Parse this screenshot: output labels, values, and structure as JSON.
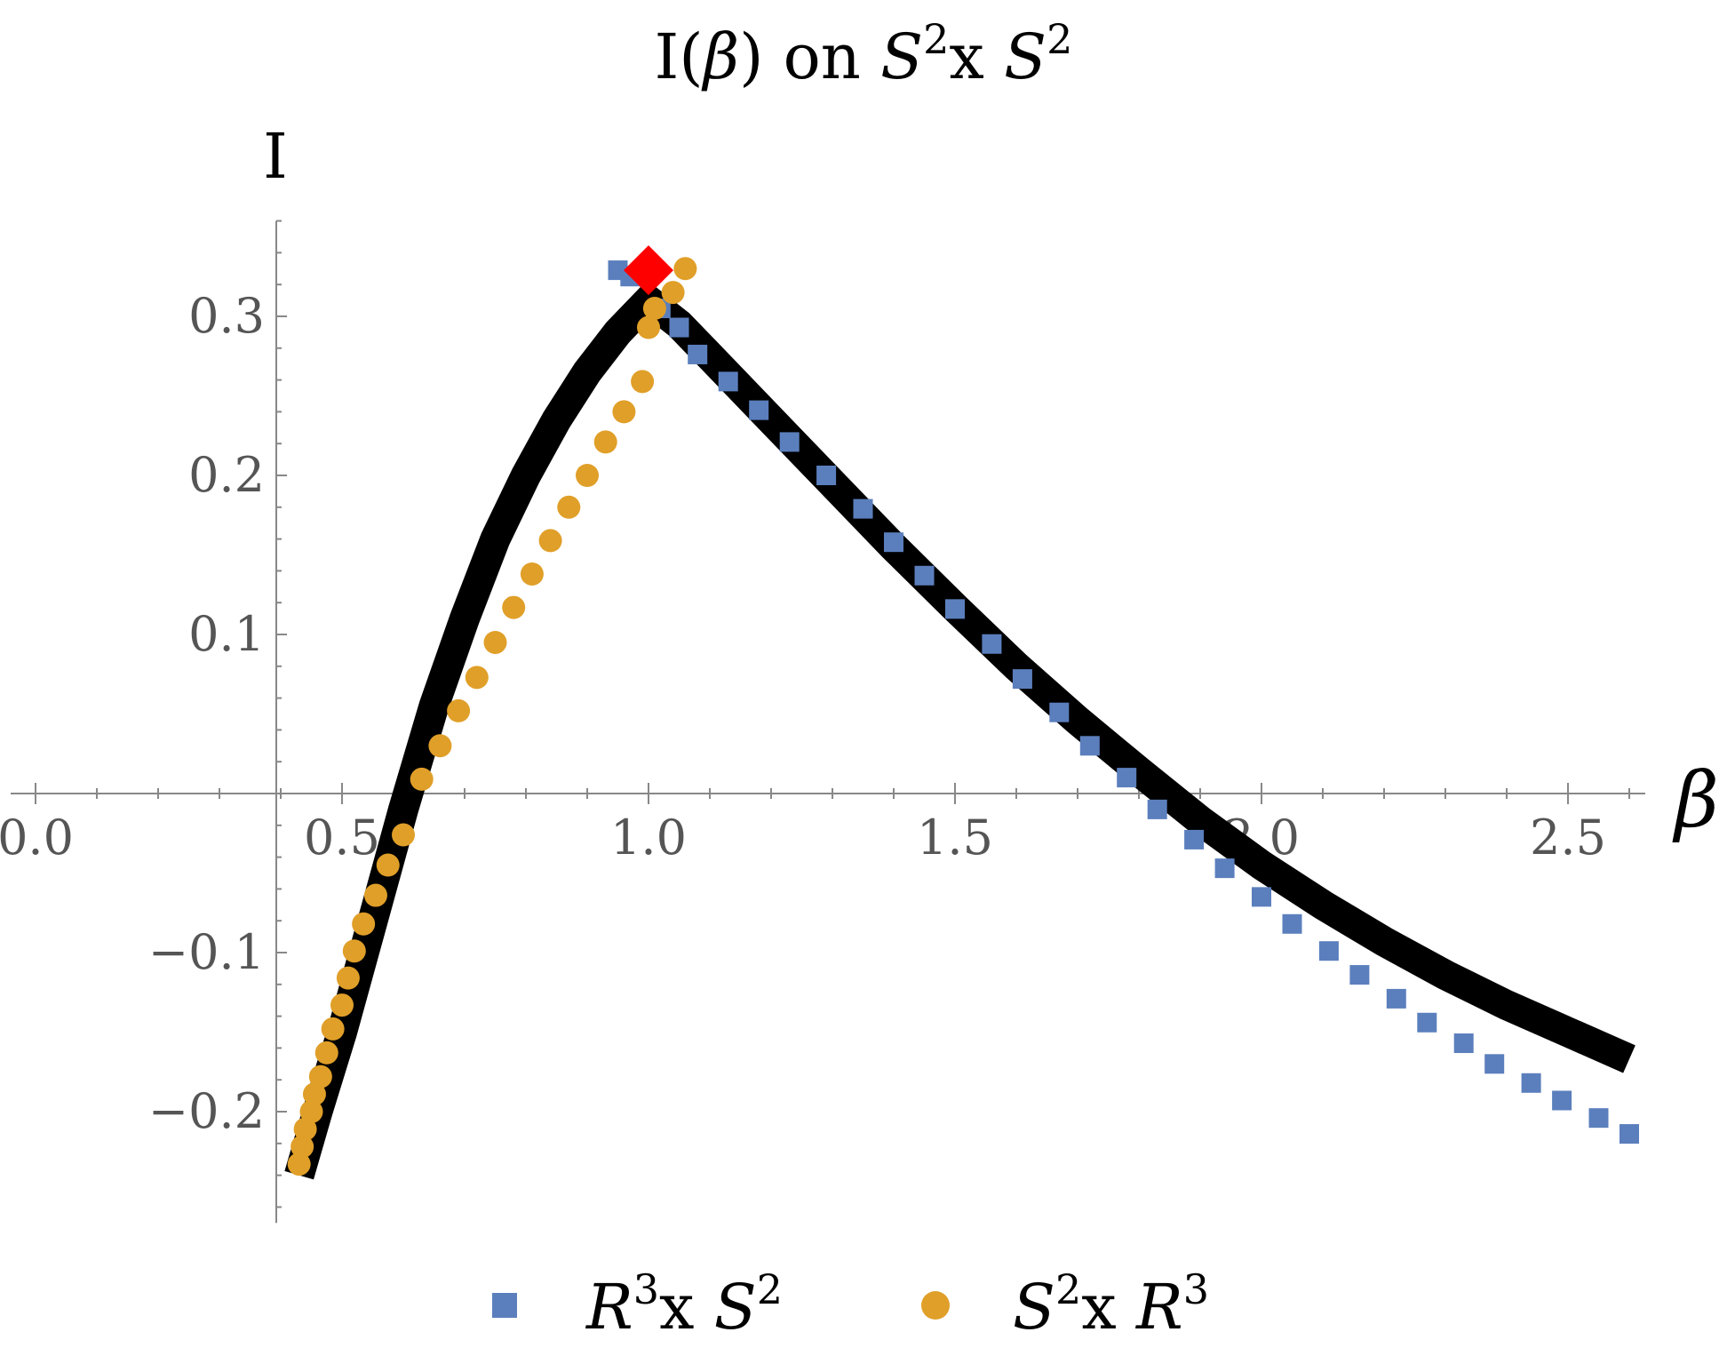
{
  "chart_data": {
    "type": "scatter",
    "title": {
      "pre": "I(",
      "beta": "β",
      "post": ") on ",
      "s": "S",
      "sup1": "2",
      "x": "x ",
      "s2": "S",
      "sup2": "2"
    },
    "xlabel": "β",
    "ylabel": "I",
    "xlim": [
      0.0,
      2.65
    ],
    "ylim": [
      -0.27,
      0.36
    ],
    "xticks": [
      {
        "value": 0.0,
        "label": "0.0"
      },
      {
        "value": 0.5,
        "label": "0.5"
      },
      {
        "value": 1.0,
        "label": "1.0"
      },
      {
        "value": 1.5,
        "label": "1.5"
      },
      {
        "value": 2.0,
        "label": "2.0"
      },
      {
        "value": 2.5,
        "label": "2.5"
      }
    ],
    "yticks": [
      {
        "value": 0.3,
        "label": "0.3"
      },
      {
        "value": 0.2,
        "label": "0.2"
      },
      {
        "value": 0.1,
        "label": "0.1"
      },
      {
        "value": -0.1,
        "label": "−0.1"
      },
      {
        "value": -0.2,
        "label": "−0.2"
      }
    ],
    "curve": {
      "color": "#000000",
      "x": [
        0.43,
        0.46,
        0.5,
        0.55,
        0.6,
        0.65,
        0.7,
        0.75,
        0.8,
        0.85,
        0.9,
        0.95,
        1.0,
        1.05,
        1.1,
        1.2,
        1.3,
        1.4,
        1.5,
        1.6,
        1.7,
        1.8,
        1.9,
        2.0,
        2.1,
        2.2,
        2.3,
        2.4,
        2.5,
        2.6
      ],
      "y": [
        -0.24,
        -0.2,
        -0.15,
        -0.08,
        -0.01,
        0.055,
        0.11,
        0.16,
        0.2,
        0.235,
        0.265,
        0.29,
        0.31,
        0.295,
        0.275,
        0.235,
        0.195,
        0.155,
        0.117,
        0.08,
        0.046,
        0.014,
        -0.017,
        -0.045,
        -0.07,
        -0.093,
        -0.114,
        -0.133,
        -0.15,
        -0.167
      ]
    },
    "series": [
      {
        "name": "R3xS2",
        "label": {
          "r": "R",
          "sup_r": "3",
          "x": "x ",
          "s": "S",
          "sup_s": "2"
        },
        "marker": "square",
        "color": "#5b7fbd",
        "x": [
          0.95,
          0.97,
          1.02,
          1.05,
          1.08,
          1.13,
          1.18,
          1.23,
          1.29,
          1.35,
          1.4,
          1.45,
          1.5,
          1.56,
          1.61,
          1.67,
          1.72,
          1.78,
          1.83,
          1.89,
          1.94,
          2.0,
          2.05,
          2.11,
          2.16,
          2.22,
          2.27,
          2.33,
          2.38,
          2.44,
          2.49,
          2.55,
          2.6
        ],
        "y": [
          0.329,
          0.325,
          0.305,
          0.293,
          0.276,
          0.259,
          0.241,
          0.221,
          0.2,
          0.179,
          0.158,
          0.137,
          0.116,
          0.094,
          0.072,
          0.051,
          0.03,
          0.01,
          -0.01,
          -0.029,
          -0.047,
          -0.065,
          -0.082,
          -0.099,
          -0.114,
          -0.129,
          -0.144,
          -0.157,
          -0.17,
          -0.182,
          -0.193,
          -0.204,
          -0.214
        ]
      },
      {
        "name": "S2xR3",
        "label": {
          "s": "S",
          "sup_s": "2",
          "x": "x ",
          "r": "R",
          "sup_r": "3"
        },
        "marker": "circle",
        "color": "#e09f28",
        "x": [
          0.43,
          0.435,
          0.44,
          0.45,
          0.455,
          0.465,
          0.475,
          0.485,
          0.5,
          0.51,
          0.52,
          0.535,
          0.555,
          0.575,
          0.6,
          0.63,
          0.66,
          0.69,
          0.72,
          0.75,
          0.78,
          0.81,
          0.84,
          0.87,
          0.9,
          0.93,
          0.96,
          0.99,
          1.0,
          1.01,
          1.04,
          1.06
        ],
        "y": [
          -0.233,
          -0.222,
          -0.211,
          -0.2,
          -0.189,
          -0.178,
          -0.163,
          -0.148,
          -0.133,
          -0.116,
          -0.099,
          -0.082,
          -0.064,
          -0.045,
          -0.026,
          0.009,
          0.03,
          0.052,
          0.073,
          0.095,
          0.117,
          0.138,
          0.159,
          0.18,
          0.2,
          0.221,
          0.24,
          0.259,
          0.293,
          0.305,
          0.315,
          0.33
        ]
      }
    ],
    "highlight": {
      "marker": "diamond",
      "color": "#ff0000",
      "x": 1.0,
      "y": 0.329
    },
    "legend_placement": "bottom",
    "grid": false
  }
}
